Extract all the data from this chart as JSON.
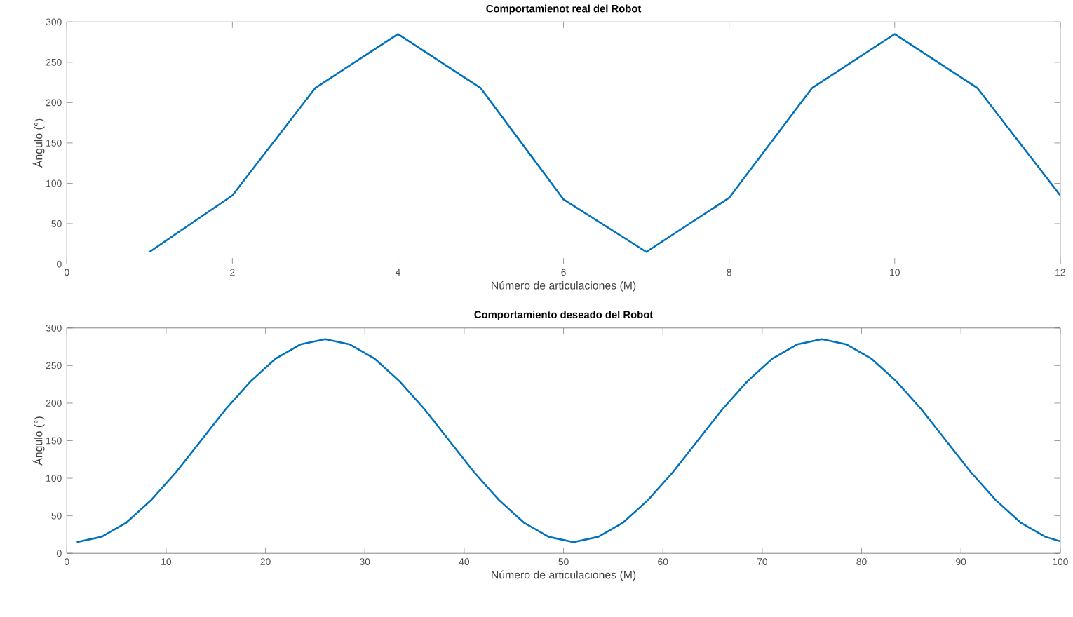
{
  "chart_data": [
    {
      "type": "line",
      "title": "Comportamienot real del Robot",
      "xlabel": "Número de articulaciones (M)",
      "ylabel": "Ángulo (°)",
      "xlim": [
        0,
        12
      ],
      "ylim": [
        0,
        300
      ],
      "xticks": [
        0,
        2,
        4,
        6,
        8,
        10,
        12
      ],
      "yticks": [
        0,
        50,
        100,
        150,
        200,
        250,
        300
      ],
      "x": [
        1,
        2,
        3,
        4,
        5,
        6,
        7,
        8,
        9,
        10,
        11,
        12
      ],
      "series": [
        {
          "color": "#0072bd",
          "values": [
            15,
            85,
            218,
            285,
            218,
            80,
            15,
            82,
            218,
            285,
            218,
            85
          ]
        }
      ]
    },
    {
      "type": "line",
      "title": "Comportamiento deseado del Robot",
      "xlabel": "Número de articulaciones (M)",
      "ylabel": "Ángulo (°)",
      "xlim": [
        0,
        100
      ],
      "ylim": [
        0,
        300
      ],
      "xticks": [
        0,
        10,
        20,
        30,
        40,
        50,
        60,
        70,
        80,
        90,
        100
      ],
      "yticks": [
        0,
        50,
        100,
        150,
        200,
        250,
        300
      ],
      "x": [
        1,
        3.5,
        6,
        8.5,
        11,
        13.5,
        16,
        18.5,
        21,
        23.5,
        26,
        28.5,
        31,
        33.5,
        36,
        38.5,
        41,
        43.5,
        46,
        48.5,
        51,
        53.5,
        56,
        58.5,
        61,
        63.5,
        66,
        68.5,
        71,
        73.5,
        76,
        78.5,
        81,
        83.5,
        86,
        88.5,
        91,
        93.5,
        96,
        98.5,
        100
      ],
      "series": [
        {
          "color": "#0072bd",
          "values": [
            15,
            22,
            41,
            71,
            108,
            150,
            192,
            229,
            259,
            278,
            285,
            278,
            259,
            229,
            192,
            150,
            108,
            71,
            41,
            22,
            15,
            22,
            41,
            71,
            108,
            150,
            192,
            229,
            259,
            278,
            285,
            278,
            259,
            229,
            192,
            150,
            108,
            71,
            41,
            22,
            16
          ]
        }
      ]
    }
  ]
}
